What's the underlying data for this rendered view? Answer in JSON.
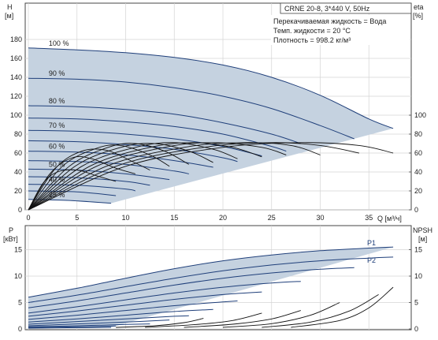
{
  "chart_data": [
    {
      "type": "line",
      "title_box": "CRNE 20-8, 3*440 V, 50Hz",
      "notes": [
        "Перекачиваемая жидкость = Вода",
        "Темп. жидкости = 20 °C",
        "Плотность = 998.2 кг/м³"
      ],
      "y_axis_left": {
        "label_line1": "H",
        "label_line2": "[м]",
        "ticks": [
          "0",
          "20",
          "40",
          "60",
          "80",
          "100",
          "120",
          "140",
          "160",
          "180"
        ],
        "range": [
          0,
          180
        ]
      },
      "y_axis_right": {
        "label": "eta",
        "label_unit": "[%]",
        "ticks": [
          "0",
          "20",
          "40",
          "60",
          "80",
          "100"
        ],
        "range": [
          0,
          180
        ]
      },
      "x_axis": {
        "label": "Q [м³/ч]",
        "ticks": [
          "0",
          "5",
          "10",
          "15",
          "20",
          "25",
          "30",
          "35"
        ],
        "range": [
          0,
          38
        ]
      },
      "grid": true,
      "envelope_color": "#c5d2e0",
      "head_curve_color": "#1f3f7a",
      "eta_curve_color": "#111111",
      "head_series": [
        {
          "name": "100 %",
          "points": [
            [
              0,
              171
            ],
            [
              5,
              169
            ],
            [
              10,
              166
            ],
            [
              15,
              161
            ],
            [
              20,
              153
            ],
            [
              25,
              140
            ],
            [
              30,
              121
            ],
            [
              35,
              96
            ],
            [
              37.5,
              86
            ]
          ]
        },
        {
          "name": "90 %",
          "points": [
            [
              0,
              139
            ],
            [
              5,
              138
            ],
            [
              10,
              135
            ],
            [
              15,
              129
            ],
            [
              20,
              120
            ],
            [
              25,
              107
            ],
            [
              30,
              89
            ],
            [
              33.5,
              75
            ]
          ]
        },
        {
          "name": "80 %",
          "points": [
            [
              0,
              110
            ],
            [
              5,
              109
            ],
            [
              10,
              106
            ],
            [
              15,
              101
            ],
            [
              20,
              92
            ],
            [
              25,
              80
            ],
            [
              28,
              70
            ]
          ]
        },
        {
          "points": [
            [
              0,
              97
            ],
            [
              5,
              96
            ],
            [
              10,
              93
            ],
            [
              15,
              88
            ],
            [
              20,
              80
            ],
            [
              25,
              67
            ],
            [
              26.5,
              62
            ]
          ]
        },
        {
          "name": "70 %",
          "points": [
            [
              0,
              84
            ],
            [
              5,
              83
            ],
            [
              10,
              80
            ],
            [
              15,
              75
            ],
            [
              20,
              67
            ],
            [
              24,
              57
            ]
          ]
        },
        {
          "points": [
            [
              0,
              73
            ],
            [
              5,
              72
            ],
            [
              10,
              69
            ],
            [
              15,
              64
            ],
            [
              20,
              55
            ],
            [
              21.5,
              51
            ]
          ]
        },
        {
          "name": "60 %",
          "points": [
            [
              0,
              62
            ],
            [
              5,
              61
            ],
            [
              10,
              58
            ],
            [
              15,
              52
            ],
            [
              19,
              45
            ]
          ]
        },
        {
          "points": [
            [
              0,
              52
            ],
            [
              5,
              51
            ],
            [
              10,
              48
            ],
            [
              15,
              41
            ],
            [
              16.5,
              38
            ]
          ]
        },
        {
          "name": "50 %",
          "points": [
            [
              0,
              43
            ],
            [
              5,
              42
            ],
            [
              10,
              38
            ],
            [
              14.5,
              32
            ]
          ]
        },
        {
          "points": [
            [
              0,
              35
            ],
            [
              5,
              34
            ],
            [
              10,
              30
            ],
            [
              12.5,
              26
            ]
          ]
        },
        {
          "name": "40 %",
          "points": [
            [
              0,
              27
            ],
            [
              5,
              26
            ],
            [
              10,
              22
            ],
            [
              11,
              20
            ]
          ]
        },
        {
          "points": [
            [
              0,
              20
            ],
            [
              5,
              19
            ],
            [
              9,
              15
            ]
          ]
        },
        {
          "name": "25 %",
          "points": [
            [
              0,
              11
            ],
            [
              4,
              10
            ],
            [
              8.5,
              7
            ]
          ]
        }
      ],
      "eta_series": [
        {
          "points": [
            [
              0,
              0
            ],
            [
              10,
              46
            ],
            [
              20,
              66
            ],
            [
              28,
              71
            ],
            [
              34,
              68
            ],
            [
              37.5,
              60
            ]
          ]
        },
        {
          "points": [
            [
              0,
              0
            ],
            [
              9,
              46
            ],
            [
              18,
              66
            ],
            [
              25,
              71
            ],
            [
              30,
              68
            ],
            [
              34,
              60
            ]
          ]
        },
        {
          "points": [
            [
              0,
              0
            ],
            [
              8,
              46
            ],
            [
              16,
              66
            ],
            [
              22,
              71
            ],
            [
              27,
              68
            ],
            [
              30,
              58
            ]
          ]
        },
        {
          "points": [
            [
              0,
              0
            ],
            [
              7,
              46
            ],
            [
              14,
              66
            ],
            [
              19,
              71
            ],
            [
              24,
              66
            ],
            [
              26.5,
              58
            ]
          ]
        },
        {
          "points": [
            [
              0,
              0
            ],
            [
              6.3,
              46
            ],
            [
              12.5,
              66
            ],
            [
              17,
              71
            ],
            [
              21,
              66
            ],
            [
              24,
              56
            ]
          ]
        },
        {
          "points": [
            [
              0,
              0
            ],
            [
              5.5,
              46
            ],
            [
              11,
              66
            ],
            [
              15,
              71
            ],
            [
              19,
              64
            ],
            [
              21.5,
              54
            ]
          ]
        },
        {
          "points": [
            [
              0,
              0
            ],
            [
              4.8,
              46
            ],
            [
              9.5,
              66
            ],
            [
              13,
              70
            ],
            [
              16.5,
              62
            ],
            [
              19,
              50
            ]
          ]
        },
        {
          "points": [
            [
              0,
              0
            ],
            [
              4.2,
              46
            ],
            [
              8.2,
              66
            ],
            [
              11,
              70
            ],
            [
              14,
              62
            ],
            [
              16.5,
              48
            ]
          ]
        },
        {
          "points": [
            [
              0,
              0
            ],
            [
              3.5,
              46
            ],
            [
              7,
              65
            ],
            [
              9.5,
              68
            ],
            [
              12.5,
              58
            ],
            [
              14.5,
              46
            ]
          ]
        },
        {
          "points": [
            [
              0,
              0
            ],
            [
              2.8,
              44
            ],
            [
              5.5,
              62
            ],
            [
              8,
              63
            ],
            [
              10.5,
              52
            ],
            [
              12.5,
              42
            ]
          ]
        },
        {
          "points": [
            [
              0,
              0
            ],
            [
              2.2,
              38
            ],
            [
              4.5,
              55
            ],
            [
              6.5,
              54
            ],
            [
              9,
              44
            ],
            [
              11,
              38
            ]
          ]
        },
        {
          "points": [
            [
              0,
              0
            ],
            [
              1.5,
              28
            ],
            [
              3,
              40
            ],
            [
              5,
              42
            ],
            [
              7,
              36
            ],
            [
              9,
              30
            ]
          ]
        }
      ]
    },
    {
      "type": "line",
      "y_axis_left": {
        "label_line1": "P",
        "label_line2": "[кВт]",
        "ticks": [
          "0",
          "5",
          "10",
          "15"
        ],
        "range": [
          0,
          18
        ]
      },
      "y_axis_right": {
        "label_line1": "NPSH",
        "label_line2": "[м]",
        "ticks": [
          "0",
          "5",
          "10",
          "15"
        ],
        "range": [
          0,
          18
        ]
      },
      "x_axis": {
        "ticks": [
          "0",
          "5",
          "10",
          "15",
          "20",
          "25",
          "30",
          "35"
        ],
        "range": [
          0,
          38
        ]
      },
      "grid": true,
      "curve_labels": [
        "P1",
        "P2"
      ],
      "power_series": [
        {
          "name": "P1",
          "points": [
            [
              0,
              6
            ],
            [
              5,
              7.7
            ],
            [
              10,
              9.6
            ],
            [
              15,
              11.4
            ],
            [
              20,
              12.9
            ],
            [
              25,
              14
            ],
            [
              30,
              14.8
            ],
            [
              35,
              15.3
            ],
            [
              37.5,
              15.5
            ]
          ]
        },
        {
          "name": "P2",
          "points": [
            [
              0,
              5
            ],
            [
              5,
              6.4
            ],
            [
              10,
              8
            ],
            [
              15,
              9.6
            ],
            [
              20,
              11
            ],
            [
              25,
              12.1
            ],
            [
              30,
              12.9
            ],
            [
              35,
              13.4
            ],
            [
              37.5,
              13.6
            ]
          ]
        },
        {
          "points": [
            [
              0,
              4
            ],
            [
              5,
              5.3
            ],
            [
              10,
              6.8
            ],
            [
              15,
              8.3
            ],
            [
              20,
              9.6
            ],
            [
              25,
              10.6
            ],
            [
              30,
              11.3
            ],
            [
              33.5,
              11.6
            ]
          ]
        },
        {
          "points": [
            [
              0,
              3
            ],
            [
              5,
              4.2
            ],
            [
              10,
              5.5
            ],
            [
              15,
              6.8
            ],
            [
              20,
              7.9
            ],
            [
              25,
              8.7
            ],
            [
              28,
              9
            ]
          ]
        },
        {
          "points": [
            [
              0,
              2.4
            ],
            [
              5,
              3.4
            ],
            [
              10,
              4.5
            ],
            [
              15,
              5.6
            ],
            [
              20,
              6.5
            ],
            [
              24,
              7
            ]
          ]
        },
        {
          "points": [
            [
              0,
              1.8
            ],
            [
              5,
              2.6
            ],
            [
              10,
              3.5
            ],
            [
              15,
              4.4
            ],
            [
              20,
              5.1
            ],
            [
              21.5,
              5.3
            ]
          ]
        },
        {
          "points": [
            [
              0,
              1.3
            ],
            [
              5,
              1.9
            ],
            [
              10,
              2.6
            ],
            [
              15,
              3.3
            ],
            [
              19,
              3.7
            ]
          ]
        },
        {
          "points": [
            [
              0,
              0.9
            ],
            [
              5,
              1.4
            ],
            [
              10,
              1.9
            ],
            [
              15,
              2.4
            ],
            [
              16.5,
              2.5
            ]
          ]
        },
        {
          "points": [
            [
              0,
              0.6
            ],
            [
              5,
              0.95
            ],
            [
              10,
              1.3
            ],
            [
              14.5,
              1.7
            ]
          ]
        },
        {
          "points": [
            [
              0,
              0.4
            ],
            [
              5,
              0.6
            ],
            [
              10,
              0.85
            ],
            [
              12.5,
              0.95
            ]
          ]
        },
        {
          "points": [
            [
              0,
              0.25
            ],
            [
              5,
              0.4
            ],
            [
              9,
              0.55
            ]
          ]
        },
        {
          "points": [
            [
              0,
              0.15
            ],
            [
              4,
              0.22
            ],
            [
              8.5,
              0.3
            ]
          ]
        }
      ],
      "npsh_series": [
        {
          "points": [
            [
              9,
              0.3
            ],
            [
              13,
              0.6
            ],
            [
              16,
              1.2
            ],
            [
              18,
              2
            ]
          ]
        },
        {
          "points": [
            [
              12,
              0.3
            ],
            [
              17,
              0.8
            ],
            [
              21,
              1.6
            ],
            [
              24,
              3
            ]
          ]
        },
        {
          "points": [
            [
              16,
              0.3
            ],
            [
              21,
              0.9
            ],
            [
              25,
              1.9
            ],
            [
              28,
              3.5
            ]
          ]
        },
        {
          "points": [
            [
              20,
              0.3
            ],
            [
              25,
              1
            ],
            [
              29,
              2.6
            ],
            [
              32,
              5
            ]
          ]
        },
        {
          "points": [
            [
              24,
              0.3
            ],
            [
              29,
              1.3
            ],
            [
              33,
              3.4
            ],
            [
              36,
              6.5
            ]
          ]
        },
        {
          "points": [
            [
              27,
              0.3
            ],
            [
              32,
              1.6
            ],
            [
              35,
              4
            ],
            [
              37.5,
              7.9
            ]
          ]
        }
      ]
    }
  ]
}
